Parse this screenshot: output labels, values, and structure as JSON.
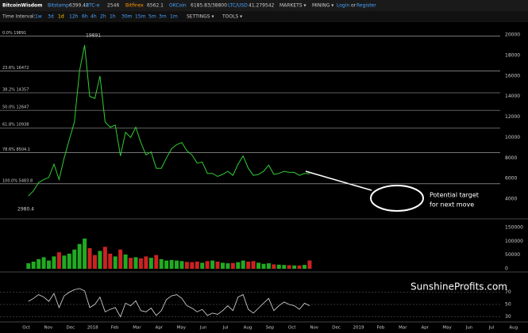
{
  "topbar": {
    "brand": "BitcoinWisdom",
    "tickers": [
      {
        "name": "Bitstamp",
        "price": "6399.42"
      },
      {
        "name": "BTC-e",
        "price": "2546"
      },
      {
        "name": "Bitfinex",
        "price": "6562.1"
      },
      {
        "name": "OKCoin",
        "price": "6185.83/38800"
      },
      {
        "name": "LTC/USD",
        "price": "41.279542"
      }
    ],
    "menus": [
      "MARKETS ▾",
      "MINING ▾"
    ],
    "login": "Login",
    "or": "or",
    "register": "Register"
  },
  "toolbar": {
    "label": "Time Interval:",
    "intervals": [
      "1w",
      "3d",
      "1d",
      "12h",
      "6h",
      "4h",
      "2h",
      "1h",
      "30m",
      "15m",
      "5m",
      "3m",
      "1m"
    ],
    "settings": "SETTINGS ▾",
    "tools": "TOOLS ▾"
  },
  "chart": {
    "price_ticks": [
      20000,
      18000,
      16000,
      14000,
      12000,
      10000,
      8000,
      6000,
      4000
    ],
    "fib": [
      {
        "label": "0.0% 19891",
        "value": 19891
      },
      {
        "label": "23.6% 16472",
        "value": 16472
      },
      {
        "label": "38.2% 14357",
        "value": 14357
      },
      {
        "label": "50.0% 12647",
        "value": 12647
      },
      {
        "label": "61.8% 10938",
        "value": 10938
      },
      {
        "label": "78.6% 8504.1",
        "value": 8504.1
      },
      {
        "label": "100.0% 5483.8",
        "value": 5483.8
      }
    ],
    "high_label": "19891",
    "low_label": "2980.4",
    "start": "2017-10-01",
    "weekly_close": [
      4300,
      4800,
      5600,
      5900,
      6100,
      7400,
      5900,
      8000,
      9800,
      11500,
      16500,
      19000,
      14000,
      13800,
      16000,
      11500,
      11000,
      11200,
      8200,
      10500,
      10000,
      11000,
      9500,
      8300,
      8600,
      7000,
      7000,
      8000,
      8900,
      9300,
      9500,
      8700,
      8300,
      7500,
      7600,
      6500,
      6500,
      6200,
      6400,
      6700,
      6300,
      7400,
      8200,
      7000,
      6300,
      6400,
      6700,
      7300,
      6400,
      6500,
      6700,
      6600,
      6600,
      6300,
      6500,
      6450
    ],
    "volume_ticks": [
      150000,
      100000,
      50000,
      0
    ],
    "weekly_volume": [
      20000,
      26000,
      35000,
      42000,
      30000,
      45000,
      60000,
      48000,
      55000,
      70000,
      90000,
      110000,
      75000,
      50000,
      65000,
      80000,
      55000,
      45000,
      70000,
      52000,
      40000,
      42000,
      38000,
      45000,
      40000,
      50000,
      35000,
      30000,
      32000,
      30000,
      28000,
      25000,
      24000,
      26000,
      22000,
      28000,
      30000,
      26000,
      22000,
      20000,
      21000,
      24000,
      30000,
      26000,
      28000,
      22000,
      18000,
      20000,
      16000,
      15000,
      14000,
      13000,
      12000,
      12000,
      14000,
      30000
    ],
    "rsi_ticks": [
      70,
      50,
      30
    ],
    "weekly_rsi": [
      55,
      60,
      66,
      62,
      55,
      68,
      45,
      64,
      70,
      74,
      76,
      72,
      45,
      50,
      62,
      38,
      42,
      45,
      30,
      52,
      48,
      56,
      40,
      38,
      44,
      32,
      40,
      58,
      64,
      66,
      60,
      48,
      44,
      38,
      42,
      32,
      36,
      34,
      40,
      48,
      40,
      62,
      66,
      42,
      36,
      44,
      52,
      60,
      40,
      48,
      54,
      50,
      48,
      42,
      52,
      48
    ],
    "months": [
      "Oct",
      "Nov",
      "Dec",
      "2018",
      "Feb",
      "Mar",
      "Apr",
      "May",
      "Jun",
      "Jul",
      "Aug",
      "Sep",
      "Oct",
      "Nov",
      "Dec",
      "2019",
      "Feb",
      "Mar",
      "Apr",
      "May",
      "Jun",
      "Jul",
      "Aug"
    ],
    "annotation": [
      "Potential target",
      "for next move"
    ],
    "watermark": "SunshineProfits.com"
  }
}
